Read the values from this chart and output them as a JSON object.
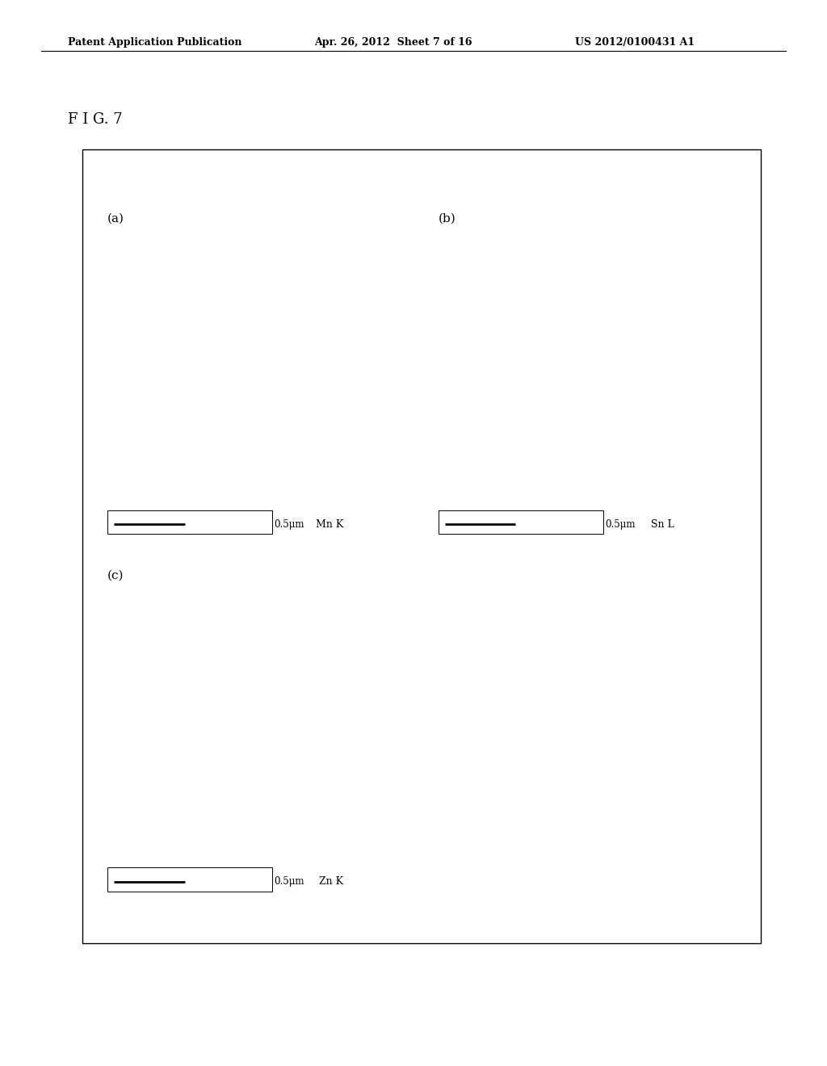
{
  "title": "F I G. 7",
  "header_left": "Patent Application Publication",
  "header_mid": "Apr. 26, 2012  Sheet 7 of 16",
  "header_right": "US 2012/0100431 A1",
  "panel_labels": [
    "(a)",
    "(b)",
    "(c)"
  ],
  "scale_labels": [
    "0.5μm",
    "0.5μm",
    "0.5μm"
  ],
  "element_labels": [
    "Mn K",
    "Sn L",
    "Zn K"
  ],
  "background_color": "#ffffff",
  "fig_width": 10.24,
  "fig_height": 13.2
}
